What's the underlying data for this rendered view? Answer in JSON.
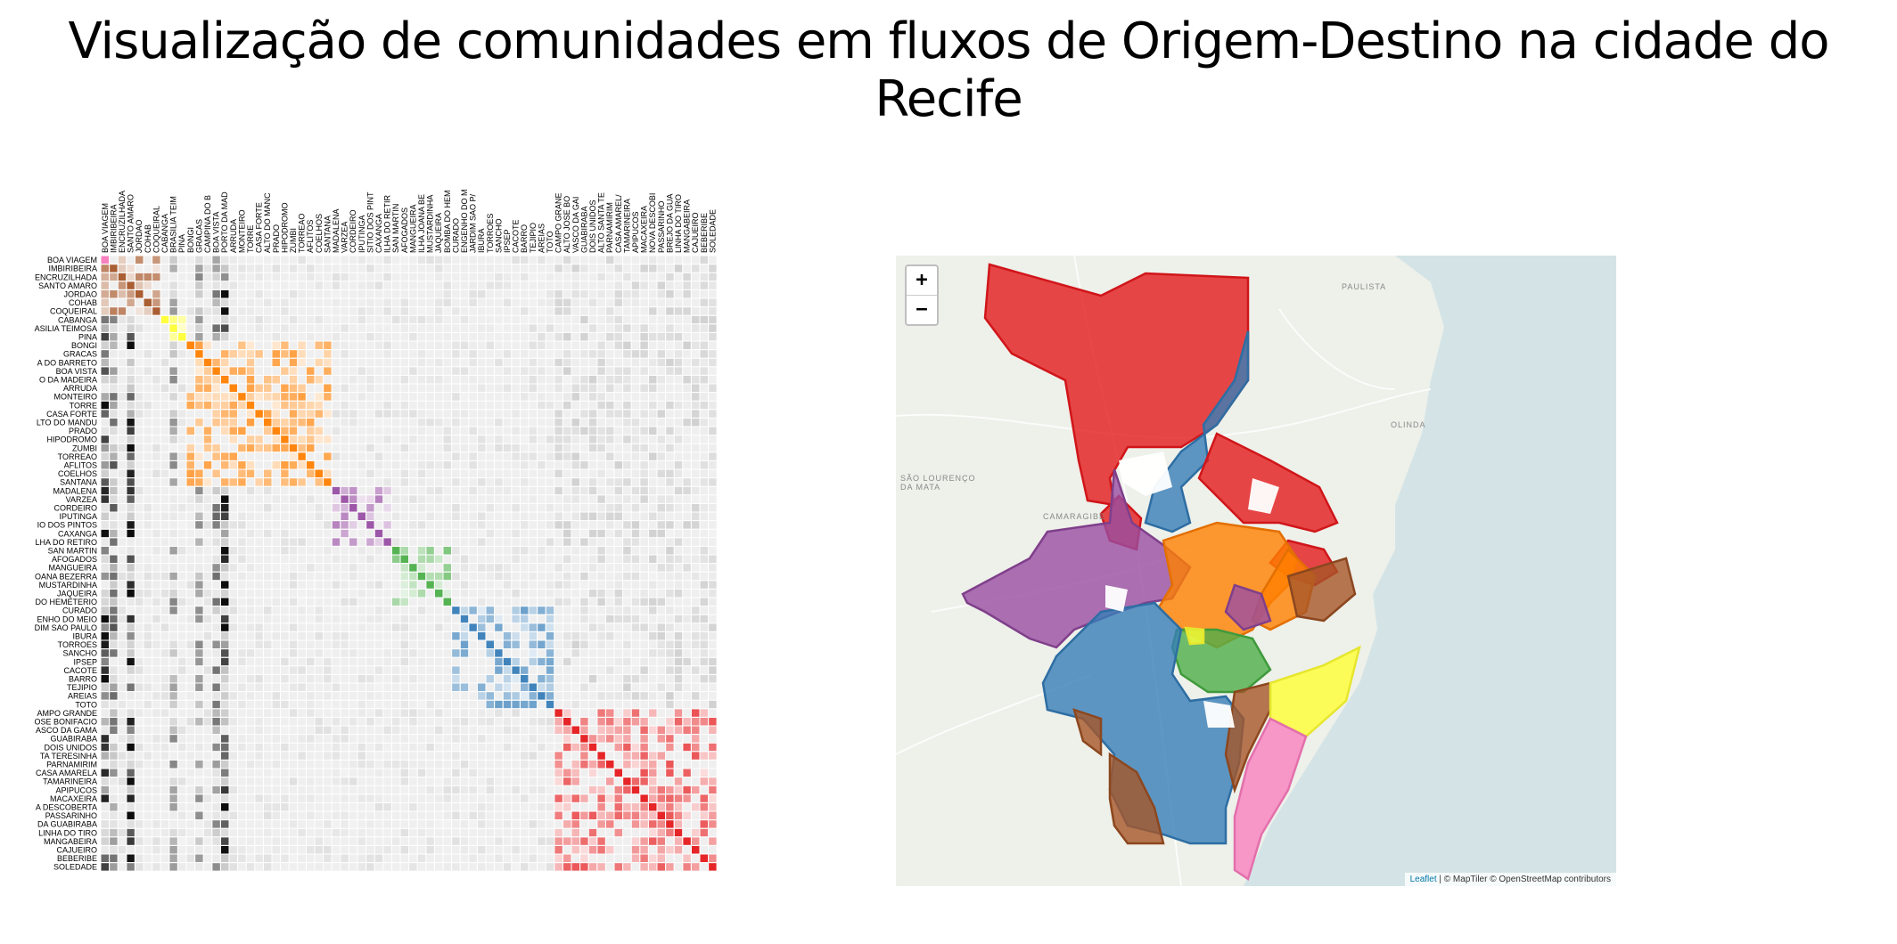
{
  "title": "Visualização de comunidades em fluxos de Origem-Destino na cidade do Recife",
  "matrix": {
    "row_labels": [
      "BOA VIAGEM",
      "IMBIRIBEIRA",
      "ENCRUZILHADA",
      "SANTO AMARO",
      "JORDAO",
      "COHAB",
      "COQUEIRAL",
      "CABANGA",
      "BRASILIA TEIMOSA",
      "PINA",
      "BONGI",
      "GRACAS",
      "ILHA DO BARRETO",
      "BOA VISTA",
      "PORTO DA MADEIRA",
      "ARRUDA",
      "MONTEIRO",
      "TORRE",
      "CASA FORTE",
      "ALTO DO MANDU",
      "PRADO",
      "HIPODROMO",
      "ZUMBI",
      "TORREAO",
      "AFLITOS",
      "COELHOS",
      "SANTANA",
      "MADALENA",
      "VARZEA",
      "CORDEIRO",
      "IPUTINGA",
      "SITIO DOS PINTOS",
      "CAXANGA",
      "ILHA DO RETIRO",
      "SAN MARTIN",
      "AFOGADOS",
      "MANGUEIRA",
      "JOANA BEZERRA",
      "MUSTARDINHA",
      "JAQUEIRA",
      "BOMBA DO HEMETERIO",
      "CURADO",
      "ENGENHO DO MEIO",
      "JARDIM SAO PAULO",
      "IBURA",
      "TORROES",
      "SANCHO",
      "IPSEP",
      "CACOTE",
      "BARRO",
      "TEJIPIO",
      "AREIAS",
      "TOTO",
      "CAMPO GRANDE",
      "ALTO JOSE BONIFACIO",
      "VASCO DA GAMA",
      "GUABIRABA",
      "DOIS UNIDOS",
      "ALTO SANTA TERESINHA",
      "PARNAMIRIM",
      "CASA AMARELA",
      "TAMARINEIRA",
      "APIPUCOS",
      "MACAXEIRA",
      "NOVA DESCOBERTA",
      "PASSARINHO",
      "BREJO DA GUABIRABA",
      "LINHA DO TIRO",
      "MANGABEIRA",
      "CAJUEIRO",
      "BEBERIBE",
      "SOLEDADE"
    ],
    "row_display": [
      "BOA VIAGEM",
      "IMBIRIBEIRA",
      "ENCRUZILHADA",
      "SANTO AMARO",
      "JORDAO",
      "COHAB",
      "COQUEIRAL",
      "CABANGA",
      "ASILIA TEIMOSA",
      "PINA",
      "BONGI",
      "GRACAS",
      "A DO BARRETO",
      "BOA VISTA",
      "O DA MADEIRA",
      "ARRUDA",
      "MONTEIRO",
      "TORRE",
      "CASA FORTE",
      "LTO DO MANDU",
      "PRADO",
      "HIPODROMO",
      "ZUMBI",
      "TORREAO",
      "AFLITOS",
      "COELHOS",
      "SANTANA",
      "MADALENA",
      "VARZEA",
      "CORDEIRO",
      "IPUTINGA",
      "IO DOS PINTOS",
      "CAXANGA",
      "LHA DO RETIRO",
      "SAN MARTIN",
      "AFOGADOS",
      "MANGUEIRA",
      "OANA BEZERRA",
      "MUSTARDINHA",
      "JAQUEIRA",
      "DO HEMETERIO",
      "CURADO",
      "ENHO DO MEIO",
      "DIM SAO PAULO",
      "IBURA",
      "TORROES",
      "SANCHO",
      "IPSEP",
      "CACOTE",
      "BARRO",
      "TEJIPIO",
      "AREIAS",
      "TOTO",
      "AMPO GRANDE",
      "OSE BONIFACIO",
      "ASCO DA GAMA",
      "GUABIRABA",
      "DOIS UNIDOS",
      "TA TERESINHA",
      "PARNAMIRIM",
      "CASA AMARELA",
      "TAMARINEIRA",
      "APIPUCOS",
      "MACAXEIRA",
      "A DESCOBERTA",
      "PASSARINHO",
      "DA GUABIRABA",
      "LINHA DO TIRO",
      "MANGABEIRA",
      "CAJUEIRO",
      "BEBERIBE",
      "SOLEDADE"
    ],
    "col_display": [
      "BOA VIAGEM",
      "IMBIRIBEIRA",
      "ENCRUZILHADA",
      "SANTO AMARO",
      "JORDAO",
      "COHAB",
      "COQUEIRAL",
      "CABANGA",
      "BRASILIA TEIM",
      "PINA",
      "BONGI",
      "GRACAS",
      "CAMPINA DO B",
      "BOA VISTA",
      "PORTO DA MAD",
      "ARRUDA",
      "MONTEIRO",
      "TORRE",
      "CASA FORTE",
      "ALTO DO MANC",
      "PRADO",
      "HIPODROMO",
      "ZUMBI",
      "TORREAO",
      "AFLITOS",
      "COELHOS",
      "SANTANA",
      "MADALENA",
      "VARZEA",
      "CORDEIRO",
      "IPUTINGA",
      "SITIO DOS PINT",
      "CAXANGA",
      "ILHA DO RETIR",
      "SAN MARTIN",
      "AFOGADOS",
      "MANGUEIRA",
      "ILHA JOANA BE",
      "MUSTARDINHA",
      "JAQUEIRA",
      "BOMBA DO HEM",
      "CURADO",
      "ENGENHO DO M",
      "JARDIM SAO P/",
      "IBURA",
      "TORROES",
      "SANCHO",
      "IPSEP",
      "CACOTE",
      "BARRO",
      "TEJIPIO",
      "AREIAS",
      "TOTO",
      "CAMPO GRANE",
      "ALTO JOSE BO",
      "VASCO DA GAI",
      "GUABIRABA",
      "DOIS UNIDOS",
      "ALTO SANTA TE",
      "PARNAMIRIM",
      "CASA AMAREL/",
      "TAMARINEIRA",
      "APIPUCOS",
      "MACAXEIRA",
      "NOVA DESCOBI",
      "PASSARINHO",
      "BREJO DA GUA",
      "LINHA DO TIRO",
      "MANGABEIRA",
      "CAJUEIRO",
      "BEBERIBE",
      "SOLEDADE"
    ],
    "communities": [
      {
        "color": "#a65628",
        "start": 0,
        "end": 6
      },
      {
        "color": "#ffff33",
        "start": 7,
        "end": 9
      },
      {
        "color": "#ff7f00",
        "start": 10,
        "end": 26
      },
      {
        "color": "#984ea3",
        "start": 27,
        "end": 33
      },
      {
        "color": "#4daf4a",
        "start": 34,
        "end": 40
      },
      {
        "color": "#377eb8",
        "start": 41,
        "end": 52
      },
      {
        "color": "#e41a1c",
        "start": 53,
        "end": 71
      }
    ],
    "special_colors": {
      "boa_viagem": "#f781bf"
    }
  },
  "map": {
    "zoom_in_label": "+",
    "zoom_out_label": "−",
    "attribution_leaflet": "Leaflet",
    "attribution_rest": " | © MapTiler © OpenStreetMap contributors",
    "places": [
      "PAULISTA",
      "OLINDA",
      "CAMARAGIBE",
      "SÃO LOURENÇO DA MATA"
    ],
    "water_color": "#d4e4e6",
    "land_color": "#eef0ea"
  }
}
